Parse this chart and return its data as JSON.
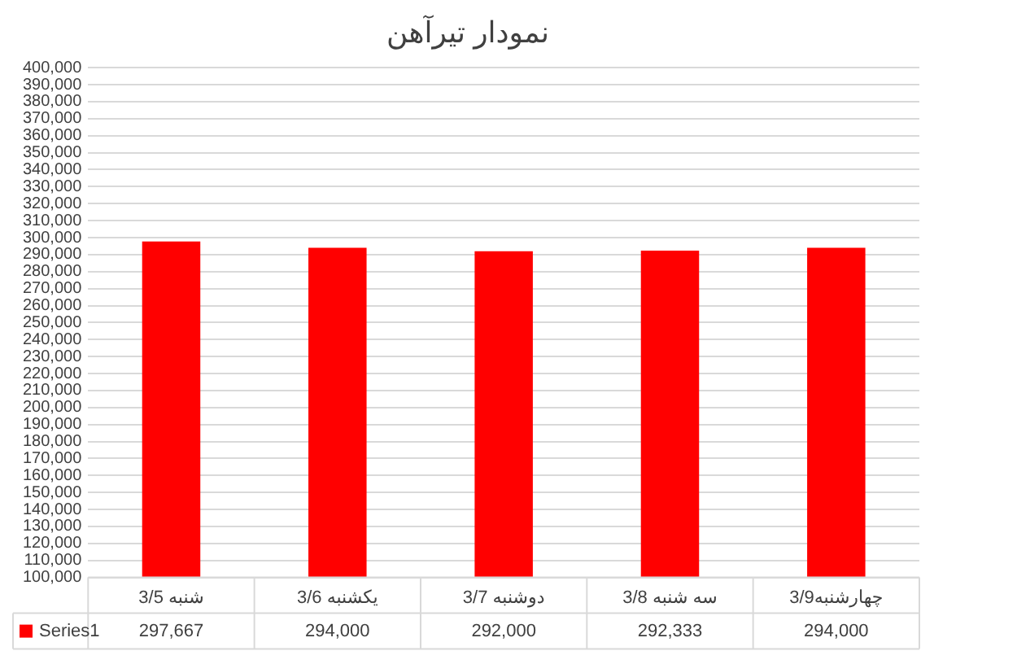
{
  "chart_data": {
    "type": "bar",
    "title": "نمودار تیرآهن",
    "categories": [
      "شنبه 3/5",
      "یکشنبه 3/6",
      "دوشنبه 3/7",
      "سه شنبه 3/8",
      "چهارشنبه3/9"
    ],
    "series": [
      {
        "name": "Series1",
        "color": "#ff0000",
        "values": [
          297667,
          294000,
          292000,
          292333,
          294000
        ],
        "value_labels": [
          "297,667",
          "294,000",
          "292,000",
          "292,333",
          "294,000"
        ]
      }
    ],
    "ylim": [
      100000,
      400000
    ],
    "yticks": [
      {
        "value": 100000,
        "label": "100,000"
      },
      {
        "value": 110000,
        "label": "110,000"
      },
      {
        "value": 120000,
        "label": "120,000"
      },
      {
        "value": 130000,
        "label": "130,000"
      },
      {
        "value": 140000,
        "label": "140,000"
      },
      {
        "value": 150000,
        "label": "150,000"
      },
      {
        "value": 160000,
        "label": "160,000"
      },
      {
        "value": 170000,
        "label": "170,000"
      },
      {
        "value": 180000,
        "label": "180,000"
      },
      {
        "value": 190000,
        "label": "190,000"
      },
      {
        "value": 200000,
        "label": "200,000"
      },
      {
        "value": 210000,
        "label": "210,000"
      },
      {
        "value": 220000,
        "label": "220,000"
      },
      {
        "value": 230000,
        "label": "230,000"
      },
      {
        "value": 240000,
        "label": "240,000"
      },
      {
        "value": 250000,
        "label": "250,000"
      },
      {
        "value": 260000,
        "label": "260,000"
      },
      {
        "value": 270000,
        "label": "270,000"
      },
      {
        "value": 280000,
        "label": "280,000"
      },
      {
        "value": 290000,
        "label": "290,000"
      },
      {
        "value": 300000,
        "label": "300,000"
      },
      {
        "value": 310000,
        "label": "310,000"
      },
      {
        "value": 320000,
        "label": "320,000"
      },
      {
        "value": 330000,
        "label": "330,000"
      },
      {
        "value": 340000,
        "label": "340,000"
      },
      {
        "value": 350000,
        "label": "350,000"
      },
      {
        "value": 360000,
        "label": "360,000"
      },
      {
        "value": 370000,
        "label": "370,000"
      },
      {
        "value": 380000,
        "label": "380,000"
      },
      {
        "value": 390000,
        "label": "390,000"
      },
      {
        "value": 400000,
        "label": "400,000"
      }
    ],
    "grid": "y",
    "legend": "bottom"
  }
}
